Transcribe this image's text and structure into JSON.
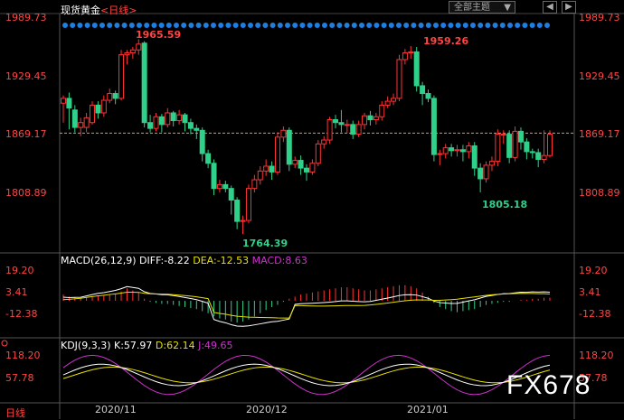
{
  "header": {
    "title": "现货黄金",
    "timeframe": "<日线>",
    "dropdown_label": "全部主题",
    "dropdown_arrow": "▼",
    "prev_btn": "◀",
    "next_btn": "▶"
  },
  "price_axis": {
    "labels": [
      "1989.73",
      "1929.45",
      "1869.17",
      "1808.89"
    ],
    "values": [
      1989.73,
      1929.45,
      1869.17,
      1808.89
    ],
    "current_price": 1869.17
  },
  "annotations": {
    "high1": "1965.59",
    "high2": "1959.26",
    "low1": "1764.39",
    "low2": "1805.18"
  },
  "macd": {
    "name": "MACD(26,12,9)",
    "diff": "DIFF:-8.22",
    "dea": "DEA:-12.53",
    "macd": "MACD:8.63",
    "axis_labels": [
      "19.20",
      "3.41",
      "-12.38"
    ]
  },
  "kdj": {
    "name": "KDJ(9,3,3)",
    "k": "K:57.97",
    "d": "D:62.14",
    "j": "J:49.65",
    "axis_labels": [
      "118.20",
      "57.78"
    ]
  },
  "dates": [
    "2020/11",
    "2020/12",
    "2021/01"
  ],
  "day_tab": "日线",
  "brand": "FX678",
  "colors": {
    "up": "#ff3333",
    "down": "#2fd08a",
    "diff": "#ffffff",
    "dea": "#e8e000",
    "macd_label": "#cc33cc",
    "kdj_j": "#cc33cc"
  },
  "chart_data": {
    "type": "candlestick",
    "ylim": [
      1750,
      2000
    ],
    "candles": [
      [
        1900,
        1905,
        1880,
        1908
      ],
      [
        1905,
        1895,
        1873,
        1911
      ],
      [
        1893,
        1875,
        1870,
        1898
      ],
      [
        1875,
        1880,
        1866,
        1885
      ],
      [
        1875,
        1885,
        1870,
        1890
      ],
      [
        1880,
        1898,
        1878,
        1902
      ],
      [
        1898,
        1890,
        1884,
        1902
      ],
      [
        1890,
        1903,
        1886,
        1908
      ],
      [
        1903,
        1910,
        1900,
        1915
      ],
      [
        1910,
        1905,
        1899,
        1913
      ],
      [
        1905,
        1950,
        1903,
        1955
      ],
      [
        1950,
        1952,
        1940,
        1955
      ],
      [
        1952,
        1955,
        1946,
        1958
      ],
      [
        1955,
        1961,
        1950,
        1966
      ],
      [
        1962,
        1880,
        1875,
        1964
      ],
      [
        1880,
        1874,
        1870,
        1888
      ],
      [
        1874,
        1886,
        1871,
        1890
      ],
      [
        1886,
        1878,
        1870,
        1889
      ],
      [
        1878,
        1890,
        1875,
        1895
      ],
      [
        1890,
        1882,
        1876,
        1892
      ],
      [
        1882,
        1888,
        1878,
        1893
      ],
      [
        1888,
        1880,
        1871,
        1890
      ],
      [
        1880,
        1874,
        1868,
        1884
      ],
      [
        1874,
        1872,
        1863,
        1878
      ],
      [
        1872,
        1848,
        1840,
        1875
      ],
      [
        1848,
        1838,
        1833,
        1852
      ],
      [
        1838,
        1812,
        1805,
        1842
      ],
      [
        1812,
        1816,
        1808,
        1821
      ],
      [
        1816,
        1812,
        1808,
        1820
      ],
      [
        1812,
        1800,
        1785,
        1815
      ],
      [
        1800,
        1778,
        1770,
        1803
      ],
      [
        1778,
        1779,
        1765,
        1784
      ],
      [
        1779,
        1812,
        1776,
        1816
      ],
      [
        1812,
        1821,
        1808,
        1826
      ],
      [
        1821,
        1830,
        1816,
        1835
      ],
      [
        1830,
        1835,
        1825,
        1842
      ],
      [
        1835,
        1829,
        1821,
        1840
      ],
      [
        1829,
        1865,
        1826,
        1870
      ],
      [
        1865,
        1872,
        1860,
        1876
      ],
      [
        1872,
        1837,
        1830,
        1875
      ],
      [
        1837,
        1841,
        1833,
        1845
      ],
      [
        1841,
        1833,
        1826,
        1846
      ],
      [
        1833,
        1829,
        1820,
        1837
      ],
      [
        1829,
        1838,
        1826,
        1842
      ],
      [
        1838,
        1858,
        1835,
        1862
      ],
      [
        1858,
        1862,
        1853,
        1866
      ],
      [
        1862,
        1883,
        1858,
        1886
      ],
      [
        1883,
        1880,
        1874,
        1888
      ],
      [
        1880,
        1878,
        1870,
        1893
      ],
      [
        1878,
        1878,
        1869,
        1883
      ],
      [
        1878,
        1868,
        1863,
        1882
      ],
      [
        1868,
        1878,
        1865,
        1882
      ],
      [
        1878,
        1887,
        1873,
        1890
      ],
      [
        1887,
        1883,
        1877,
        1892
      ],
      [
        1883,
        1886,
        1878,
        1890
      ],
      [
        1886,
        1898,
        1882,
        1902
      ],
      [
        1898,
        1902,
        1895,
        1907
      ],
      [
        1902,
        1905,
        1898,
        1910
      ],
      [
        1905,
        1945,
        1902,
        1950
      ],
      [
        1945,
        1952,
        1940,
        1956
      ],
      [
        1952,
        1953,
        1946,
        1959
      ],
      [
        1953,
        1918,
        1912,
        1958
      ],
      [
        1918,
        1910,
        1898,
        1922
      ],
      [
        1910,
        1905,
        1901,
        1914
      ],
      [
        1905,
        1847,
        1840,
        1908
      ],
      [
        1847,
        1848,
        1836,
        1852
      ],
      [
        1848,
        1854,
        1843,
        1858
      ],
      [
        1854,
        1851,
        1845,
        1858
      ],
      [
        1851,
        1852,
        1845,
        1857
      ],
      [
        1852,
        1850,
        1840,
        1857
      ],
      [
        1850,
        1856,
        1843,
        1860
      ],
      [
        1856,
        1833,
        1825,
        1860
      ],
      [
        1833,
        1822,
        1808,
        1838
      ],
      [
        1822,
        1836,
        1818,
        1840
      ],
      [
        1836,
        1840,
        1830,
        1845
      ],
      [
        1840,
        1868,
        1835,
        1873
      ],
      [
        1868,
        1868,
        1858,
        1872
      ],
      [
        1868,
        1844,
        1838,
        1872
      ],
      [
        1844,
        1871,
        1840,
        1876
      ],
      [
        1871,
        1860,
        1852,
        1875
      ],
      [
        1860,
        1850,
        1842,
        1864
      ],
      [
        1850,
        1849,
        1843,
        1853
      ],
      [
        1849,
        1842,
        1834,
        1853
      ],
      [
        1842,
        1846,
        1838,
        1872
      ],
      [
        1846,
        1868,
        1844,
        1872
      ]
    ],
    "macd_hist": [
      6,
      4,
      3,
      2,
      3,
      4,
      5,
      5,
      6,
      7,
      9,
      12,
      10,
      8,
      2,
      -1,
      -2,
      -3,
      -3,
      -4,
      -5,
      -6,
      -7,
      -8,
      -10,
      -12,
      -15,
      -17,
      -18,
      -20,
      -21,
      -20,
      -18,
      -15,
      -12,
      -9,
      -6,
      -4,
      -1,
      2,
      4,
      6,
      7,
      8,
      9,
      10,
      11,
      12,
      13,
      13,
      12,
      11,
      10,
      10,
      11,
      12,
      13,
      14,
      15,
      15,
      14,
      12,
      8,
      4,
      -2,
      -6,
      -8,
      -10,
      -11,
      -10,
      -9,
      -8,
      -6,
      -4,
      -3,
      -2,
      -1,
      -1,
      0,
      1,
      1,
      2,
      2,
      3,
      3
    ]
  }
}
